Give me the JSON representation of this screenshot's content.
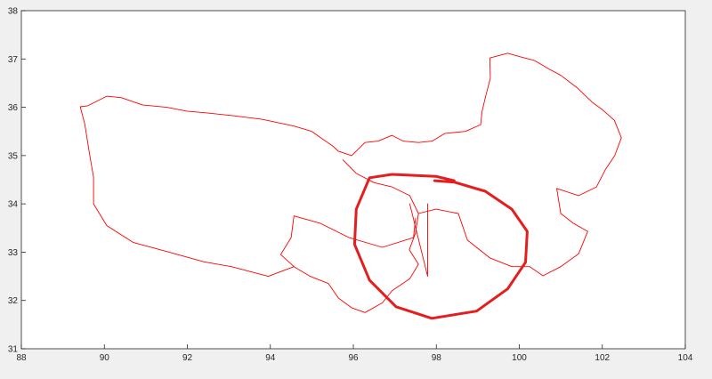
{
  "chart_data": {
    "type": "line",
    "title": "",
    "xlabel": "",
    "ylabel": "",
    "xlim": [
      88,
      104
    ],
    "ylim": [
      31,
      38
    ],
    "xticks": [
      88,
      90,
      92,
      94,
      96,
      98,
      100,
      102,
      104
    ],
    "yticks": [
      31,
      32,
      33,
      34,
      35,
      36,
      37,
      38
    ],
    "grid": false,
    "colors": {
      "outline": "#ff0000",
      "annotation": "#e41e1e",
      "background": "#f0f0f0",
      "axes": "#ffffff"
    },
    "series": [
      {
        "id": "outline-main",
        "width": "thin",
        "points": [
          [
            89.42,
            36.01
          ],
          [
            89.6,
            36.03
          ],
          [
            90.06,
            36.23
          ],
          [
            90.4,
            36.2
          ],
          [
            90.92,
            36.05
          ],
          [
            91.5,
            36.0
          ],
          [
            91.99,
            35.92
          ],
          [
            92.5,
            35.88
          ],
          [
            93.06,
            35.83
          ],
          [
            93.8,
            35.75
          ],
          [
            94.57,
            35.61
          ],
          [
            95.0,
            35.5
          ],
          [
            95.21,
            35.37
          ],
          [
            95.5,
            35.2
          ],
          [
            95.64,
            35.09
          ],
          [
            95.96,
            35.0
          ],
          [
            96.28,
            35.27
          ],
          [
            96.6,
            35.3
          ],
          [
            96.93,
            35.42
          ],
          [
            97.2,
            35.3
          ],
          [
            97.57,
            35.27
          ],
          [
            97.9,
            35.3
          ],
          [
            98.21,
            35.46
          ],
          [
            98.7,
            35.5
          ],
          [
            99.07,
            35.64
          ],
          [
            99.1,
            35.9
          ],
          [
            99.18,
            36.2
          ],
          [
            99.3,
            36.6
          ],
          [
            99.29,
            37.02
          ],
          [
            99.72,
            37.12
          ],
          [
            100.0,
            37.05
          ],
          [
            100.36,
            36.97
          ],
          [
            100.7,
            36.8
          ],
          [
            101.0,
            36.66
          ],
          [
            101.4,
            36.4
          ],
          [
            101.76,
            36.1
          ],
          [
            102.0,
            35.95
          ],
          [
            102.29,
            35.73
          ],
          [
            102.46,
            35.37
          ],
          [
            102.3,
            35.0
          ],
          [
            102.08,
            34.72
          ],
          [
            101.86,
            34.35
          ],
          [
            101.43,
            34.17
          ],
          [
            100.9,
            34.32
          ],
          [
            101.0,
            33.8
          ],
          [
            101.3,
            33.6
          ],
          [
            101.65,
            33.43
          ],
          [
            101.43,
            32.97
          ],
          [
            101.0,
            32.7
          ],
          [
            100.57,
            32.51
          ],
          [
            100.25,
            32.7
          ],
          [
            99.82,
            32.7
          ],
          [
            99.29,
            32.88
          ],
          [
            98.75,
            33.25
          ],
          [
            98.53,
            33.8
          ],
          [
            97.99,
            33.89
          ],
          [
            97.57,
            33.8
          ],
          [
            97.5,
            33.4
          ],
          [
            97.35,
            33.05
          ],
          [
            97.57,
            32.75
          ],
          [
            97.36,
            32.45
          ],
          [
            96.93,
            32.2
          ],
          [
            96.7,
            31.95
          ],
          [
            96.28,
            31.75
          ],
          [
            95.96,
            31.85
          ],
          [
            95.64,
            32.05
          ],
          [
            95.4,
            32.35
          ],
          [
            94.96,
            32.5
          ],
          [
            94.57,
            32.7
          ],
          [
            94.25,
            32.95
          ],
          [
            94.5,
            33.3
          ],
          [
            94.57,
            33.75
          ],
          [
            95.2,
            33.6
          ],
          [
            95.9,
            33.3
          ],
          [
            96.7,
            33.1
          ],
          [
            97.45,
            33.3
          ],
          [
            97.5,
            33.7
          ]
        ]
      },
      {
        "id": "outline-west",
        "width": "thin",
        "points": [
          [
            94.57,
            32.7
          ],
          [
            93.95,
            32.5
          ],
          [
            93.06,
            32.7
          ],
          [
            92.4,
            32.8
          ],
          [
            91.56,
            33.0
          ],
          [
            90.7,
            33.2
          ],
          [
            90.06,
            33.55
          ],
          [
            89.74,
            34.0
          ],
          [
            89.74,
            34.55
          ],
          [
            89.63,
            35.1
          ],
          [
            89.53,
            35.65
          ],
          [
            89.42,
            36.01
          ]
        ]
      },
      {
        "id": "outline-inner",
        "width": "thin",
        "points": [
          [
            95.75,
            34.91
          ],
          [
            96.07,
            34.63
          ],
          [
            96.5,
            34.44
          ],
          [
            96.93,
            34.35
          ],
          [
            97.36,
            34.17
          ],
          [
            97.57,
            33.8
          ]
        ]
      },
      {
        "id": "inner-lines",
        "width": "thin",
        "points": [
          [
            97.36,
            34.0
          ],
          [
            97.79,
            32.5
          ],
          [
            97.79,
            34.0
          ]
        ]
      },
      {
        "id": "annotation-circle",
        "width": "thick",
        "points": [
          [
            97.96,
            34.48
          ],
          [
            98.43,
            34.45
          ],
          [
            99.18,
            34.26
          ],
          [
            99.82,
            33.89
          ],
          [
            100.19,
            33.43
          ],
          [
            100.15,
            32.79
          ],
          [
            99.72,
            32.24
          ],
          [
            98.97,
            31.78
          ],
          [
            97.89,
            31.63
          ],
          [
            97.03,
            31.87
          ],
          [
            96.39,
            32.42
          ],
          [
            96.03,
            33.16
          ],
          [
            96.07,
            33.89
          ],
          [
            96.39,
            34.54
          ],
          [
            96.93,
            34.61
          ],
          [
            97.99,
            34.57
          ],
          [
            98.43,
            34.48
          ]
        ]
      }
    ]
  }
}
